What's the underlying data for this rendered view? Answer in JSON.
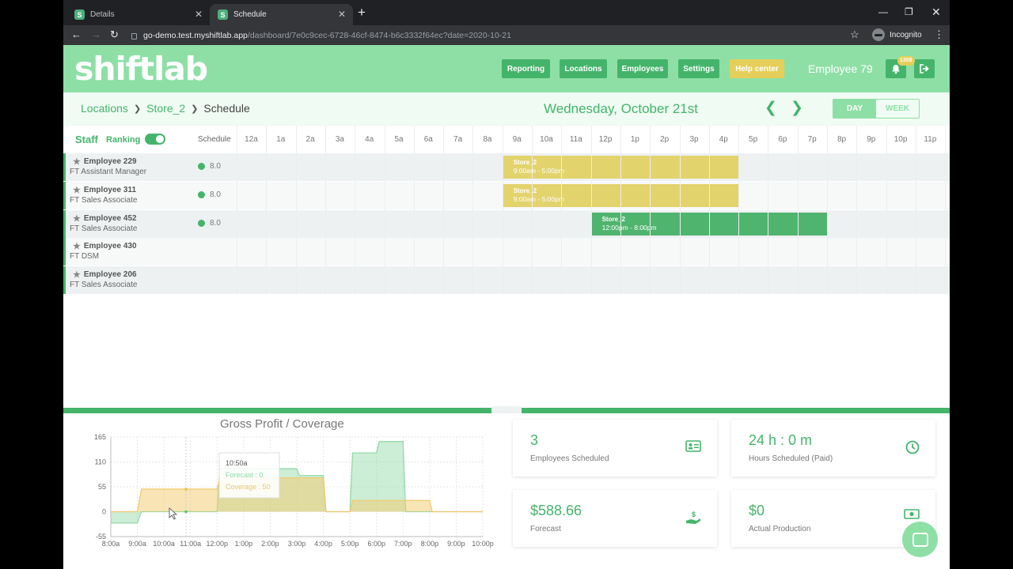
{
  "browser": {
    "tabs": [
      {
        "title": "Details",
        "favicon": "S",
        "active": false
      },
      {
        "title": "Schedule",
        "favicon": "S",
        "active": true
      }
    ],
    "url_host": "go-demo.test.myshiftlab.app",
    "url_path": "/dashboard/7e0c9cec-6728-46cf-8474-b6c3332f64ec?date=2020-10-21",
    "profile_label": "Incognito"
  },
  "header": {
    "logo": "shiftlab",
    "nav": [
      {
        "label": "Reporting",
        "style": "normal"
      },
      {
        "label": "Locations",
        "style": "normal"
      },
      {
        "label": "Employees",
        "style": "normal"
      },
      {
        "label": "Settings",
        "style": "normal"
      },
      {
        "label": "Help center",
        "style": "help"
      }
    ],
    "user_name": "Employee 79",
    "notification_count": "1308"
  },
  "subheader": {
    "breadcrumbs": [
      "Locations",
      "Store_2",
      "Schedule"
    ],
    "date": "Wednesday, October 21st",
    "view_day": "DAY",
    "view_week": "WEEK"
  },
  "grid": {
    "staff_label": "Staff",
    "ranking_label": "Ranking",
    "schedule_label": "Schedule",
    "hours": [
      "12a",
      "1a",
      "2a",
      "3a",
      "4a",
      "5a",
      "6a",
      "7a",
      "8a",
      "9a",
      "10a",
      "11a",
      "12p",
      "1p",
      "2p",
      "3p",
      "4p",
      "5p",
      "6p",
      "7p",
      "8p",
      "9p",
      "10p",
      "11p"
    ],
    "employees": [
      {
        "name": "Employee 229",
        "type": "FT",
        "role": "Assistant Manager",
        "hours": "8.0",
        "shift": {
          "location": "Store_2",
          "time": "9:00am - 5:00pm",
          "start": 9,
          "end": 17,
          "color": "#e2d36d"
        }
      },
      {
        "name": "Employee 311",
        "type": "FT",
        "role": "Sales Associate",
        "hours": "8.0",
        "shift": {
          "location": "Store_2",
          "time": "9:00am - 5:00pm",
          "start": 9,
          "end": 17,
          "color": "#e2d36d"
        }
      },
      {
        "name": "Employee 452",
        "type": "FT",
        "role": "Sales Associate",
        "hours": "8.0",
        "shift": {
          "location": "Store_2",
          "time": "12:00pm - 8:00pm",
          "start": 12,
          "end": 20,
          "color": "#4fb46e"
        }
      },
      {
        "name": "Employee 430",
        "type": "FT",
        "role": "DSM",
        "hours": "",
        "shift": null
      },
      {
        "name": "Employee 206",
        "type": "FT",
        "role": "Sales Associate",
        "hours": "",
        "shift": null
      }
    ]
  },
  "stats": [
    {
      "value": "3",
      "label": "Employees Scheduled",
      "icon": "id-card-icon"
    },
    {
      "value": "24 h : 0 m",
      "label": "Hours Scheduled (Paid)",
      "icon": "clock-icon"
    },
    {
      "value": "$588.66",
      "label": "Forecast",
      "icon": "money-hand-icon"
    },
    {
      "value": "$0",
      "label": "Actual Production",
      "icon": "cash-icon"
    }
  ],
  "chart_data": {
    "type": "area",
    "title": "Gross Profit / Coverage",
    "x_ticks": [
      "8:00a",
      "9:00a",
      "10:00a",
      "11:00a",
      "12:00p",
      "1:00p",
      "2:00p",
      "3:00p",
      "4:00p",
      "5:00p",
      "6:00p",
      "7:00p",
      "8:00p",
      "9:00p",
      "10:00p"
    ],
    "y_ticks": [
      165,
      110,
      55,
      0,
      -55
    ],
    "ylim": [
      -55,
      165
    ],
    "xlim": [
      8,
      22
    ],
    "grid": true,
    "series": [
      {
        "name": "Forecast",
        "color": "#8fd8a3",
        "points": [
          [
            8,
            -25
          ],
          [
            9,
            -25
          ],
          [
            9.15,
            0
          ],
          [
            12,
            0
          ],
          [
            12.1,
            95
          ],
          [
            15,
            95
          ],
          [
            15.1,
            80
          ],
          [
            16,
            80
          ],
          [
            16.1,
            0
          ],
          [
            17,
            0
          ],
          [
            17.1,
            130
          ],
          [
            18,
            130
          ],
          [
            18.1,
            155
          ],
          [
            19,
            155
          ],
          [
            19.1,
            0
          ],
          [
            22,
            0
          ]
        ]
      },
      {
        "name": "Coverage",
        "color": "#f2c96b",
        "points": [
          [
            8,
            0
          ],
          [
            9,
            0
          ],
          [
            9.15,
            50
          ],
          [
            12,
            50
          ],
          [
            12.1,
            75
          ],
          [
            16,
            75
          ],
          [
            16.1,
            0
          ],
          [
            17,
            0
          ],
          [
            17.1,
            25
          ],
          [
            20,
            25
          ],
          [
            20.1,
            0
          ],
          [
            22,
            0
          ]
        ]
      }
    ],
    "tooltip": {
      "time": "10:50a",
      "forecast": "Forecast : 0",
      "coverage": "Coverage : 50"
    }
  }
}
